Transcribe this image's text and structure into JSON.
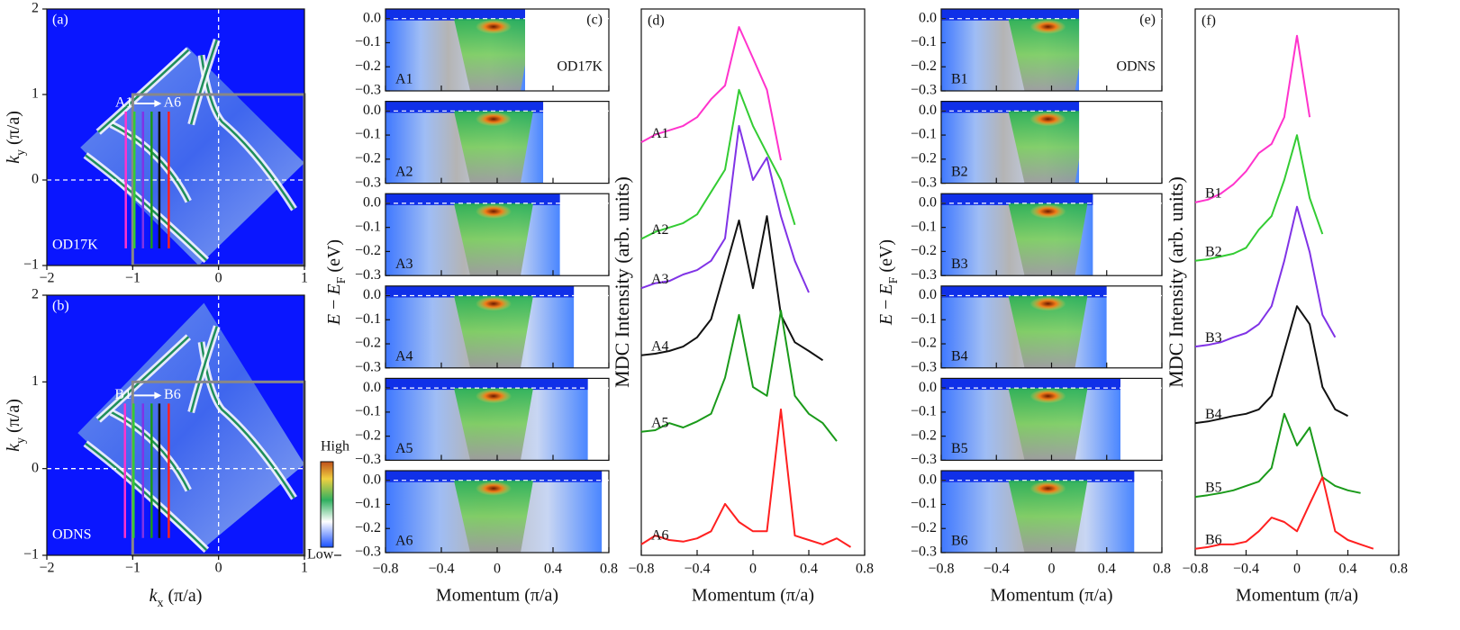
{
  "chart_data": [
    {
      "type": "map",
      "panel_label": "(a)",
      "sample": "OD17K",
      "ylabel": [
        "k",
        "y",
        " (π/a)"
      ],
      "xlim": [
        -2,
        1
      ],
      "ylim": [
        -1,
        2
      ],
      "xticks": [
        {
          "value": -2,
          "label": "−2"
        },
        {
          "value": -1,
          "label": "−1"
        },
        0,
        1
      ],
      "yticks": [
        {
          "value": -1,
          "label": "−1"
        },
        0,
        1,
        2
      ],
      "box_x": [
        -1,
        1
      ],
      "box_y": [
        -1,
        1
      ],
      "cuts_x": [
        -1.08,
        -0.98,
        -0.88,
        -0.78,
        -0.69,
        -0.58
      ],
      "cuts_y": [
        -0.8,
        0.8
      ],
      "cut_colors": [
        "#ff33cc",
        "#33cc33",
        "#8033e6",
        "#1a9a1a",
        "#111111",
        "#ff2020"
      ],
      "cut_labels": [
        "A1",
        "A6"
      ]
    },
    {
      "type": "map",
      "panel_label": "(b)",
      "sample": "ODNS",
      "xlabel": [
        "k",
        "x",
        " (π/a)"
      ],
      "ylabel": [
        "k",
        "y",
        " (π/a)"
      ],
      "xlim": [
        -2,
        1
      ],
      "ylim": [
        -1,
        2
      ],
      "xticks": [
        {
          "value": -2,
          "label": "−2"
        },
        {
          "value": -1,
          "label": "−1"
        },
        0,
        1
      ],
      "yticks": [
        {
          "value": -1,
          "label": "−1"
        },
        0,
        1,
        2
      ],
      "box_x": [
        -1,
        1
      ],
      "box_y": [
        -1,
        1
      ],
      "cuts_x": [
        -1.09,
        -0.99,
        -0.88,
        -0.78,
        -0.69,
        -0.58
      ],
      "cuts_y": [
        -0.8,
        0.75
      ],
      "cut_colors": [
        "#ff33cc",
        "#33cc33",
        "#8033e6",
        "#1a9a1a",
        "#111111",
        "#ff2020"
      ],
      "cut_labels": [
        "B1",
        "B6"
      ],
      "colorbar_labels": [
        "High",
        "Low"
      ]
    },
    {
      "type": "image-stack",
      "panel_label": "(c)",
      "sample": "OD17K",
      "panels": [
        "A1",
        "A2",
        "A3",
        "A4",
        "A5",
        "A6"
      ],
      "extents": [
        0.2,
        0.33,
        0.45,
        0.55,
        0.65,
        0.75
      ],
      "xlim": [
        -0.8,
        0.8
      ],
      "ylim": [
        -0.3,
        0.04
      ],
      "xticks": [
        {
          "value": -0.8,
          "label": "−0.8"
        },
        {
          "value": -0.4,
          "label": "−0.4"
        },
        0,
        0.4,
        0.8
      ],
      "yticks": [
        {
          "value": 0,
          "label": "0.0"
        },
        {
          "value": -0.1,
          "label": "−0.1"
        },
        {
          "value": -0.2,
          "label": "−0.2"
        },
        {
          "value": -0.3,
          "label": "−0.3"
        }
      ],
      "ylabel": [
        "E",
        " − ",
        "E",
        "F",
        " (eV)"
      ],
      "xlabel": "Momentum (π/a)"
    },
    {
      "type": "line",
      "panel_label": "(d)",
      "ylabel": "MDC Intensity (arb. units)",
      "xlabel": "Momentum (π/a)",
      "xlim": [
        -0.8,
        0.8
      ],
      "ylim": [
        0,
        100
      ],
      "xticks": [
        {
          "value": -0.8,
          "label": "−0.8"
        },
        {
          "value": -0.4,
          "label": "−0.4"
        },
        0,
        0.4,
        0.8
      ],
      "x": [
        -0.8,
        -0.7,
        -0.6,
        -0.5,
        -0.4,
        -0.3,
        -0.2,
        -0.1,
        0,
        0.1,
        0.2,
        0.3,
        0.4,
        0.5,
        0.6,
        0.7,
        0.8
      ],
      "series": [
        {
          "name": "A1",
          "color": "#ff33cc",
          "values": [
            75.6,
            77,
            77.8,
            78.6,
            80.2,
            83.5,
            86,
            96.7,
            91,
            85.2,
            72.3,
            null,
            null,
            null,
            null,
            null,
            null
          ]
        },
        {
          "name": "A2",
          "color": "#33cc33",
          "values": [
            57.9,
            59.2,
            60,
            60.8,
            62.4,
            66.5,
            70.6,
            85.2,
            78.6,
            73.6,
            68.7,
            60.5,
            null,
            null,
            null,
            null,
            null
          ]
        },
        {
          "name": "A3",
          "color": "#8033e6",
          "values": [
            48.9,
            49.8,
            50.2,
            51.4,
            52.2,
            53.9,
            58,
            78.6,
            68.7,
            72.8,
            62.1,
            53.9,
            48.1,
            null,
            null,
            null,
            null
          ]
        },
        {
          "name": "A4",
          "color": "#111111",
          "values": [
            36.6,
            36.9,
            37.4,
            38.2,
            39.9,
            43.2,
            52.2,
            61.3,
            48.9,
            62.1,
            44,
            39,
            37.4,
            35.7,
            null,
            null,
            null
          ]
        },
        {
          "name": "A5",
          "color": "#1a9a1a",
          "values": [
            22.6,
            22.9,
            24.2,
            23.4,
            24.5,
            25.9,
            32.5,
            44,
            30.8,
            29.2,
            44.8,
            29.2,
            25.9,
            24.2,
            20.9,
            null,
            null
          ]
        },
        {
          "name": "A6",
          "color": "#ff2020",
          "values": [
            2,
            3.6,
            2.8,
            2.5,
            3.1,
            4.4,
            9.4,
            6.1,
            4.4,
            4.4,
            26.7,
            3.6,
            2.8,
            2,
            3.1,
            1.5,
            null
          ]
        }
      ]
    },
    {
      "type": "image-stack",
      "panel_label": "(e)",
      "sample": "ODNS",
      "panels": [
        "B1",
        "B2",
        "B3",
        "B4",
        "B5",
        "B6"
      ],
      "extents": [
        0.2,
        0.2,
        0.3,
        0.4,
        0.5,
        0.6
      ],
      "xlim": [
        -0.8,
        0.8
      ],
      "ylim": [
        -0.3,
        0.04
      ],
      "xticks": [
        {
          "value": -0.8,
          "label": "−0.8"
        },
        {
          "value": -0.4,
          "label": "−0.4"
        },
        0,
        0.4,
        0.8
      ],
      "yticks": [
        {
          "value": 0,
          "label": "0.0"
        },
        {
          "value": -0.1,
          "label": "−0.1"
        },
        {
          "value": -0.2,
          "label": "−0.2"
        },
        {
          "value": -0.3,
          "label": "−0.3"
        }
      ],
      "ylabel": [
        "E",
        " − ",
        "E",
        "F",
        " (eV)"
      ],
      "xlabel": "Momentum (π/a)"
    },
    {
      "type": "line",
      "panel_label": "(f)",
      "ylabel": "MDC Intensity (arb. units)",
      "xlabel": "Momentum (π/a)",
      "xlim": [
        -0.8,
        0.8
      ],
      "ylim": [
        0,
        100
      ],
      "xticks": [
        {
          "value": -0.8,
          "label": "−0.8"
        },
        {
          "value": -0.4,
          "label": "−0.4"
        },
        0,
        0.4,
        0.8
      ],
      "x": [
        -0.8,
        -0.7,
        -0.6,
        -0.5,
        -0.4,
        -0.3,
        -0.2,
        -0.1,
        0,
        0.1,
        0.2,
        0.3,
        0.4,
        0.5,
        0.6,
        0.7,
        0.8
      ],
      "series": [
        {
          "name": "B1",
          "color": "#ff33cc",
          "values": [
            64.6,
            65.1,
            66.2,
            67.9,
            70.3,
            73.6,
            75.3,
            80.2,
            95.1,
            80.2,
            null,
            null,
            null,
            null,
            null,
            null,
            null
          ]
        },
        {
          "name": "B2",
          "color": "#33cc33",
          "values": [
            53.9,
            54.2,
            54.7,
            55.2,
            56.3,
            59.6,
            62.1,
            68.7,
            76.9,
            65.4,
            58.8,
            null,
            null,
            null,
            null,
            null,
            null
          ]
        },
        {
          "name": "B3",
          "color": "#8033e6",
          "values": [
            38.2,
            38.5,
            39,
            39.9,
            40.7,
            42.3,
            45.6,
            53.9,
            63.8,
            55.5,
            44,
            39.9,
            null,
            null,
            null,
            null,
            null
          ]
        },
        {
          "name": "B4",
          "color": "#111111",
          "values": [
            24.2,
            24.5,
            25,
            25.5,
            25.9,
            26.7,
            29.2,
            37.4,
            45.6,
            42.3,
            30.8,
            26.7,
            25.5,
            null,
            null,
            null,
            null
          ]
        },
        {
          "name": "B5",
          "color": "#1a9a1a",
          "values": [
            10.7,
            11,
            11.4,
            11.9,
            12.7,
            13.5,
            16,
            25.9,
            20.1,
            23.4,
            14.3,
            12.7,
            11.9,
            11.4,
            null,
            null,
            null
          ]
        },
        {
          "name": "B6",
          "color": "#ff2020",
          "values": [
            1.2,
            1.5,
            2,
            2,
            2.5,
            4.4,
            6.9,
            6.1,
            4.4,
            9.4,
            14.3,
            4.4,
            2.8,
            2,
            1.2,
            null,
            null
          ]
        }
      ]
    }
  ]
}
